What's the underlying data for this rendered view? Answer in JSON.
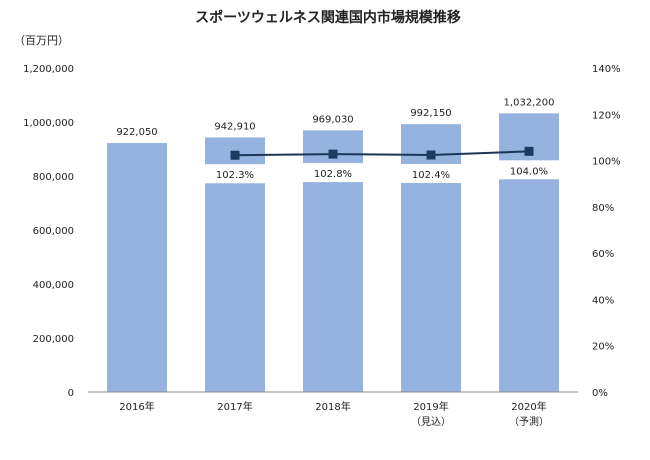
{
  "chart_data": {
    "type": "bar",
    "title": "スポーツウェルネス関連国内市場規模推移",
    "unit_label": "（百万円）",
    "categories": [
      {
        "line1": "2016年",
        "line2": ""
      },
      {
        "line1": "2017年",
        "line2": ""
      },
      {
        "line1": "2018年",
        "line2": ""
      },
      {
        "line1": "2019年",
        "line2": "（見込）"
      },
      {
        "line1": "2020年",
        "line2": "（予測）"
      }
    ],
    "series": [
      {
        "type": "bar",
        "axis": "left",
        "values": [
          922050,
          942910,
          969030,
          992150,
          1032200
        ],
        "labels": [
          "922,050",
          "942,910",
          "969,030",
          "992,150",
          "1,032,200"
        ]
      },
      {
        "type": "line",
        "axis": "right",
        "values": [
          null,
          102.3,
          102.8,
          102.4,
          104.0
        ],
        "labels": [
          "",
          "102.3%",
          "102.8%",
          "102.4%",
          "104.0%"
        ]
      }
    ],
    "left_axis": {
      "min": 0,
      "max": 1200000,
      "ticks": [
        0,
        200000,
        400000,
        600000,
        800000,
        1000000,
        1200000
      ],
      "tick_labels": [
        "0",
        "200,000",
        "400,000",
        "600,000",
        "800,000",
        "1,000,000",
        "1,200,000"
      ]
    },
    "right_axis": {
      "min": 0,
      "max": 140,
      "ticks": [
        0,
        20,
        40,
        60,
        80,
        100,
        120,
        140
      ],
      "tick_labels": [
        "0%",
        "20%",
        "40%",
        "60%",
        "80%",
        "100%",
        "120%",
        "140%"
      ]
    },
    "colors": {
      "bar": "#96b3df",
      "line": "#1d3557",
      "marker": "#1f3a60"
    },
    "grid": false
  }
}
